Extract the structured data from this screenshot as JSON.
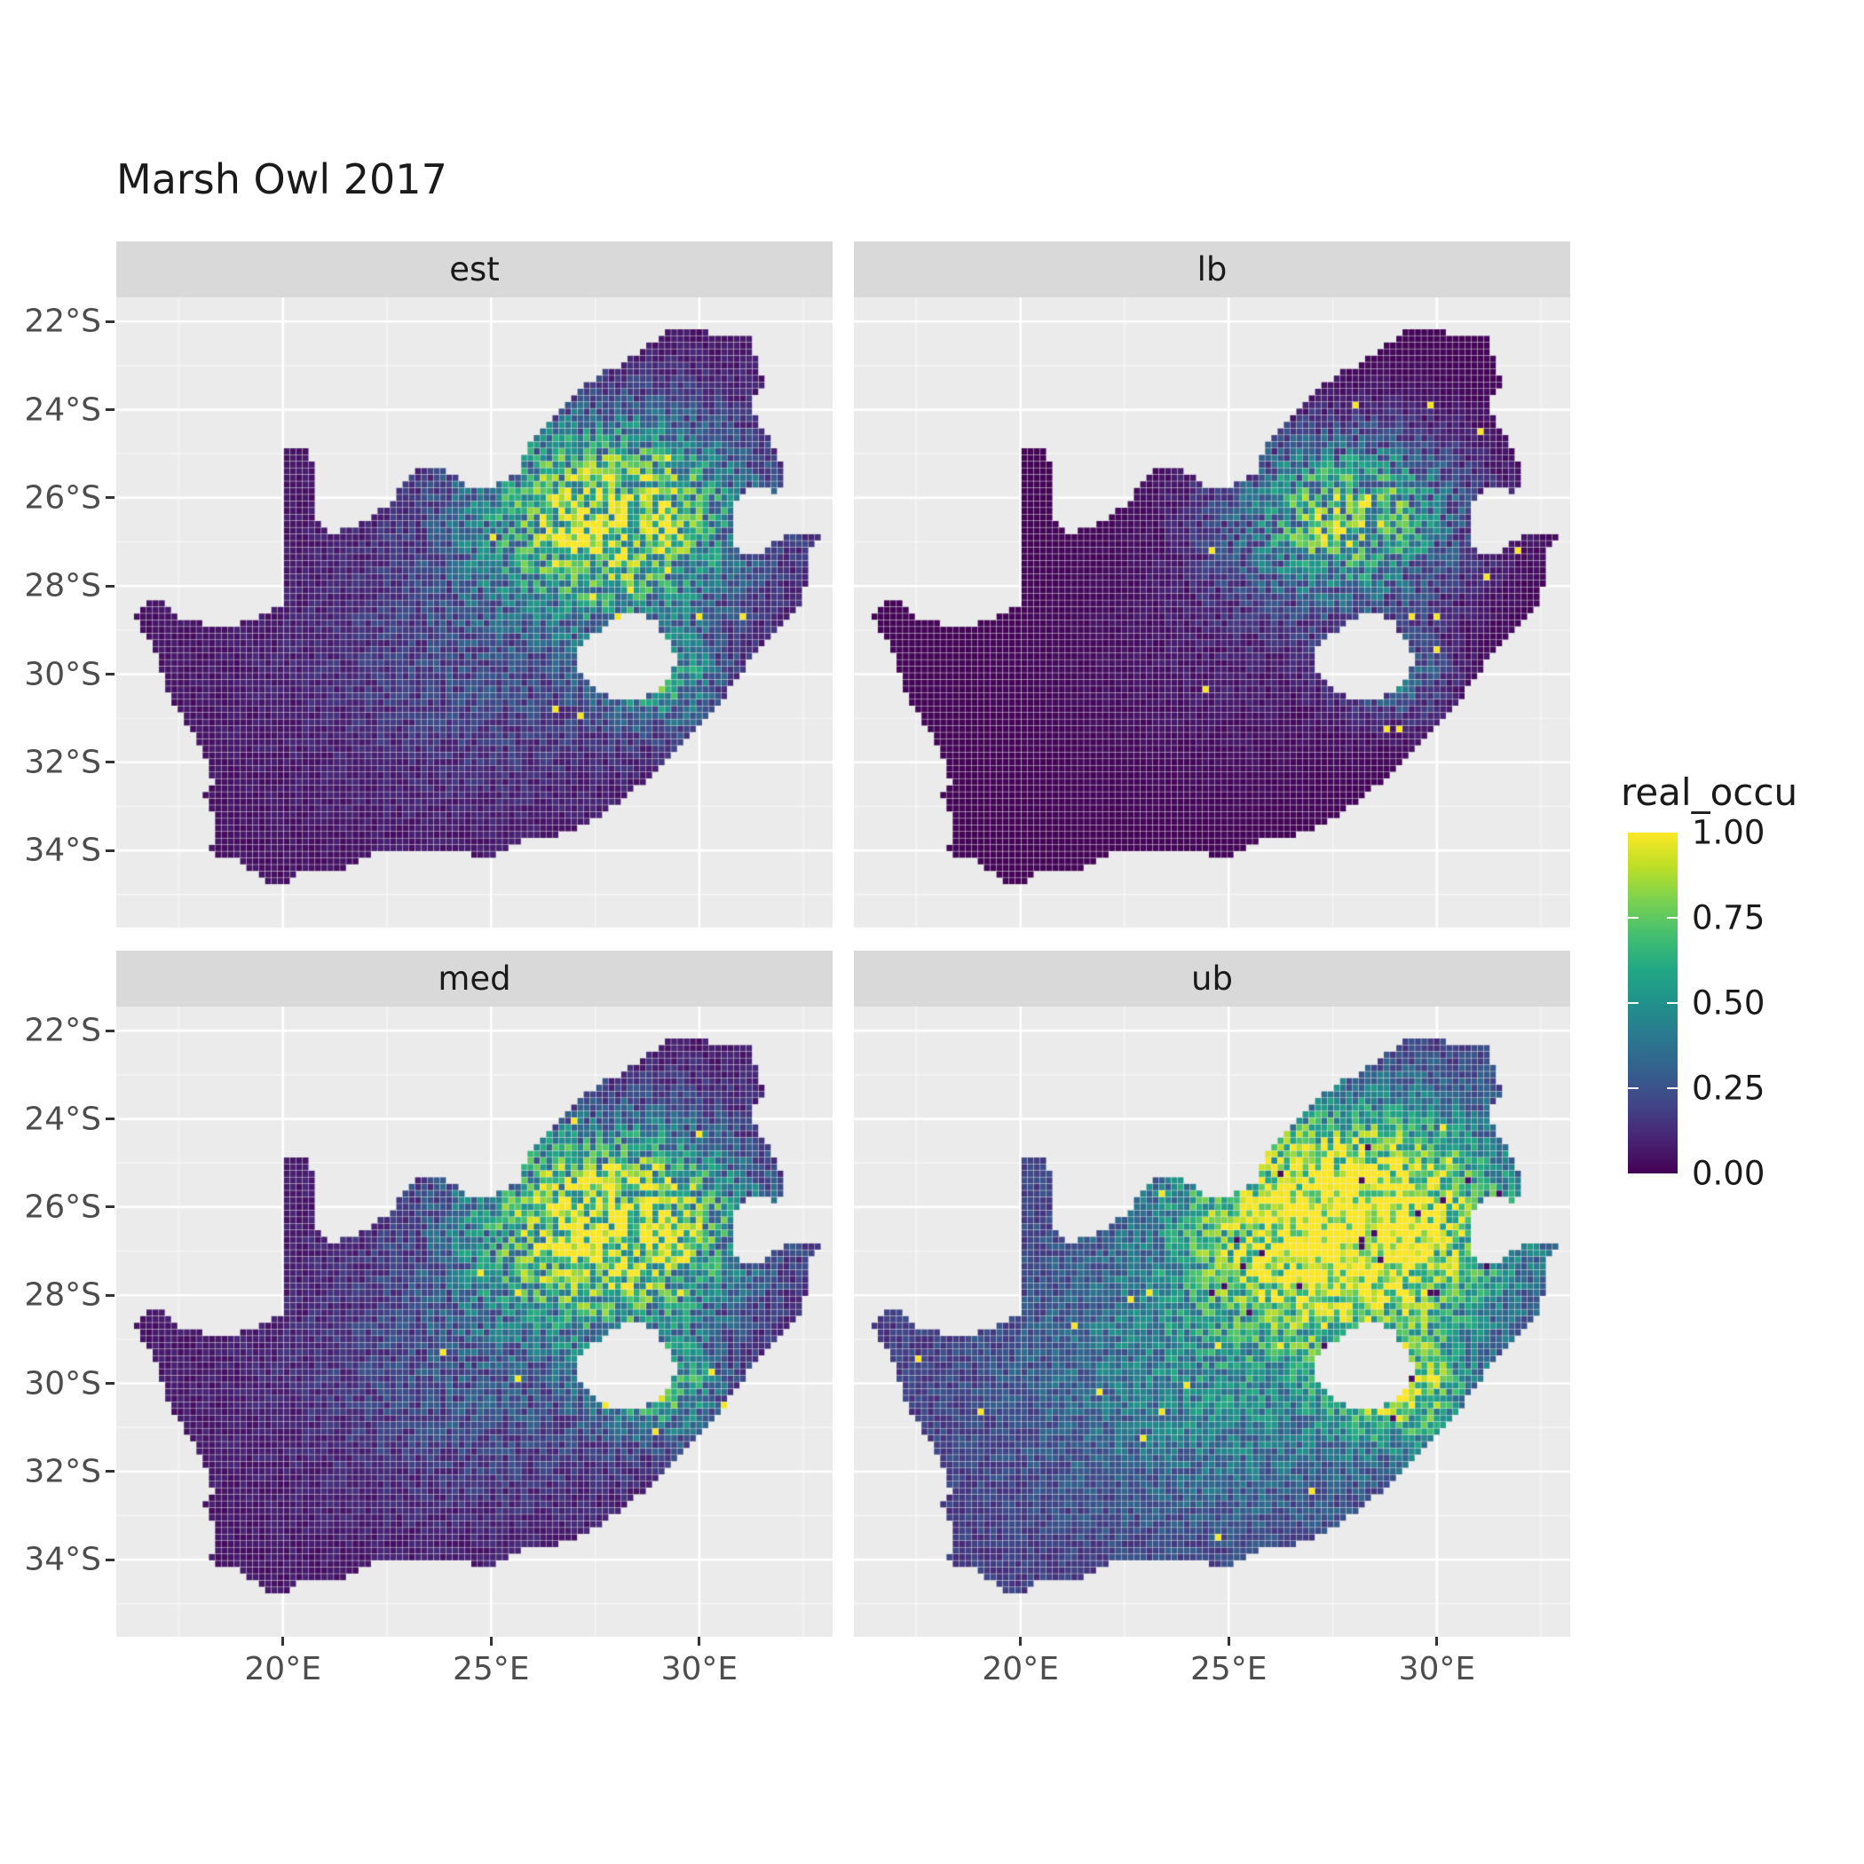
{
  "title": "Marsh Owl 2017",
  "legend": {
    "title": "real_occu",
    "ticks": [
      "1.00",
      "0.75",
      "0.50",
      "0.25",
      "0.00"
    ]
  },
  "axes": {
    "x_tick_labels": [
      "20°E",
      "25°E",
      "30°E"
    ],
    "y_tick_labels": [
      "22°S",
      "24°S",
      "26°S",
      "28°S",
      "30°S",
      "32°S",
      "34°S"
    ]
  },
  "chart_data": {
    "type": "heatmap",
    "title": "Marsh Owl 2017",
    "facets": [
      {
        "label": "est",
        "params": {
          "exp": 1.0,
          "gain": 0.85,
          "n0": 0.45,
          "n1": 1.1,
          "bias": 0.005
        }
      },
      {
        "label": "lb",
        "params": {
          "exp": 1.6,
          "gain": 0.75,
          "n0": 0.35,
          "n1": 1.1,
          "bias": 0.0
        }
      },
      {
        "label": "med",
        "params": {
          "exp": 0.95,
          "gain": 0.95,
          "n0": 0.45,
          "n1": 1.1,
          "bias": 0.005
        }
      },
      {
        "label": "ub",
        "params": {
          "exp": 0.7,
          "gain": 1.2,
          "n0": 0.55,
          "n1": 0.85,
          "bias": 0.03
        }
      }
    ],
    "legend_title": "real_occu",
    "legend_breaks": [
      1.0,
      0.75,
      0.5,
      0.25,
      0.0
    ],
    "value_range": [
      0,
      1
    ],
    "x_axis": {
      "domain": [
        16.0,
        33.2
      ],
      "ticks_deg": [
        20,
        25,
        30
      ],
      "labels": [
        "20°E",
        "25°E",
        "30°E"
      ],
      "minor_deg": [
        17.5,
        22.5,
        27.5,
        32.5
      ]
    },
    "y_axis": {
      "domain": [
        -35.75,
        -21.45
      ],
      "ticks_deg": [
        -22,
        -24,
        -26,
        -28,
        -30,
        -32,
        -34
      ],
      "labels": [
        "22°S",
        "24°S",
        "26°S",
        "28°S",
        "30°S",
        "32°S",
        "34°S"
      ],
      "minor_deg": [
        -23,
        -25,
        -27,
        -29,
        -31,
        -33,
        -35
      ]
    },
    "grid": {
      "major": true,
      "minor": true
    },
    "colors": {
      "panel_bg": "#ebebeb",
      "strip_bg": "#d9d9d9",
      "grid": "#ffffff",
      "axis_text": "#4d4d4d",
      "tick_mark": "#333333",
      "title_text": "#1a1a1a",
      "viridis_stops": [
        [
          0.0,
          "#440154"
        ],
        [
          0.1,
          "#482475"
        ],
        [
          0.2,
          "#414487"
        ],
        [
          0.3,
          "#355f8d"
        ],
        [
          0.4,
          "#2a788e"
        ],
        [
          0.5,
          "#21918c"
        ],
        [
          0.6,
          "#22a884"
        ],
        [
          0.7,
          "#44bf70"
        ],
        [
          0.8,
          "#7ad151"
        ],
        [
          0.9,
          "#bddf26"
        ],
        [
          1.0,
          "#fde725"
        ]
      ]
    },
    "raster": {
      "cell_size_deg": 0.15,
      "background_occupancy": 0.045,
      "hotspots": [
        {
          "lon": 27.9,
          "lat": -26.35,
          "slon": 2.3,
          "slat": 1.55,
          "amp": 0.95
        },
        {
          "lon": 29.1,
          "lat": -30.1,
          "slon": 1.0,
          "slat": 0.8,
          "amp": 0.5
        },
        {
          "lon": 25.0,
          "lat": -29.8,
          "slon": 3.2,
          "slat": 2.2,
          "amp": 0.18
        }
      ]
    },
    "south_africa_outline": [
      [
        16.45,
        -28.6
      ],
      [
        16.6,
        -28.95
      ],
      [
        16.85,
        -29.35
      ],
      [
        17.05,
        -29.75
      ],
      [
        17.2,
        -30.2
      ],
      [
        17.35,
        -30.65
      ],
      [
        17.7,
        -31.15
      ],
      [
        18.05,
        -31.7
      ],
      [
        18.25,
        -32.15
      ],
      [
        18.33,
        -32.55
      ],
      [
        18.1,
        -32.75
      ],
      [
        18.33,
        -33.1
      ],
      [
        18.4,
        -33.55
      ],
      [
        18.3,
        -33.95
      ],
      [
        18.48,
        -34.3
      ],
      [
        18.83,
        -34.15
      ],
      [
        19.1,
        -34.4
      ],
      [
        19.65,
        -34.7
      ],
      [
        20.05,
        -34.8
      ],
      [
        20.45,
        -34.48
      ],
      [
        21.0,
        -34.43
      ],
      [
        21.6,
        -34.4
      ],
      [
        22.2,
        -34.1
      ],
      [
        22.85,
        -34.0
      ],
      [
        23.6,
        -34.05
      ],
      [
        24.3,
        -34.05
      ],
      [
        24.85,
        -34.2
      ],
      [
        25.35,
        -34.05
      ],
      [
        25.7,
        -33.8
      ],
      [
        26.4,
        -33.75
      ],
      [
        27.1,
        -33.5
      ],
      [
        27.9,
        -33.05
      ],
      [
        28.55,
        -32.55
      ],
      [
        29.2,
        -31.95
      ],
      [
        29.9,
        -31.25
      ],
      [
        30.55,
        -30.6
      ],
      [
        31.05,
        -29.95
      ],
      [
        31.3,
        -29.55
      ],
      [
        31.75,
        -29.1
      ],
      [
        32.25,
        -28.65
      ],
      [
        32.5,
        -28.25
      ],
      [
        32.6,
        -27.7
      ],
      [
        32.65,
        -27.2
      ],
      [
        32.9,
        -26.85
      ],
      [
        32.12,
        -26.85
      ],
      [
        31.55,
        -27.2
      ],
      [
        31.1,
        -27.3
      ],
      [
        30.85,
        -27.05
      ],
      [
        30.8,
        -26.6
      ],
      [
        30.8,
        -26.15
      ],
      [
        31.1,
        -25.85
      ],
      [
        31.45,
        -25.7
      ],
      [
        31.9,
        -25.95
      ],
      [
        32.0,
        -25.6
      ],
      [
        31.95,
        -25.15
      ],
      [
        31.7,
        -24.7
      ],
      [
        31.4,
        -24.2
      ],
      [
        31.25,
        -23.75
      ],
      [
        31.55,
        -23.4
      ],
      [
        31.4,
        -22.9
      ],
      [
        31.25,
        -22.4
      ],
      [
        30.6,
        -22.3
      ],
      [
        29.9,
        -22.2
      ],
      [
        29.3,
        -22.2
      ],
      [
        28.9,
        -22.45
      ],
      [
        28.2,
        -22.95
      ],
      [
        27.6,
        -23.2
      ],
      [
        27.0,
        -23.65
      ],
      [
        26.5,
        -24.25
      ],
      [
        25.95,
        -24.75
      ],
      [
        25.65,
        -25.45
      ],
      [
        25.1,
        -25.75
      ],
      [
        24.45,
        -25.75
      ],
      [
        23.95,
        -25.4
      ],
      [
        23.3,
        -25.3
      ],
      [
        22.9,
        -25.6
      ],
      [
        22.65,
        -26.1
      ],
      [
        22.2,
        -26.4
      ],
      [
        21.7,
        -26.65
      ],
      [
        21.1,
        -26.85
      ],
      [
        20.85,
        -26.45
      ],
      [
        20.7,
        -25.9
      ],
      [
        20.75,
        -25.4
      ],
      [
        20.6,
        -24.85
      ],
      [
        20.0,
        -24.88
      ],
      [
        20.0,
        -25.6
      ],
      [
        20.0,
        -26.4
      ],
      [
        20.0,
        -27.3
      ],
      [
        20.0,
        -28.2
      ],
      [
        19.98,
        -28.43
      ],
      [
        19.45,
        -28.7
      ],
      [
        18.75,
        -28.9
      ],
      [
        18.1,
        -28.85
      ],
      [
        17.55,
        -28.7
      ],
      [
        17.1,
        -28.35
      ],
      [
        16.8,
        -28.3
      ]
    ],
    "lesotho_hole": [
      [
        26.99,
        -29.65
      ],
      [
        27.35,
        -29.2
      ],
      [
        27.75,
        -28.9
      ],
      [
        28.15,
        -28.7
      ],
      [
        28.6,
        -28.6
      ],
      [
        28.95,
        -28.8
      ],
      [
        29.25,
        -29.2
      ],
      [
        29.45,
        -29.7
      ],
      [
        29.3,
        -30.1
      ],
      [
        28.95,
        -30.4
      ],
      [
        28.45,
        -30.65
      ],
      [
        28.0,
        -30.6
      ],
      [
        27.55,
        -30.4
      ],
      [
        27.2,
        -30.1
      ]
    ]
  }
}
